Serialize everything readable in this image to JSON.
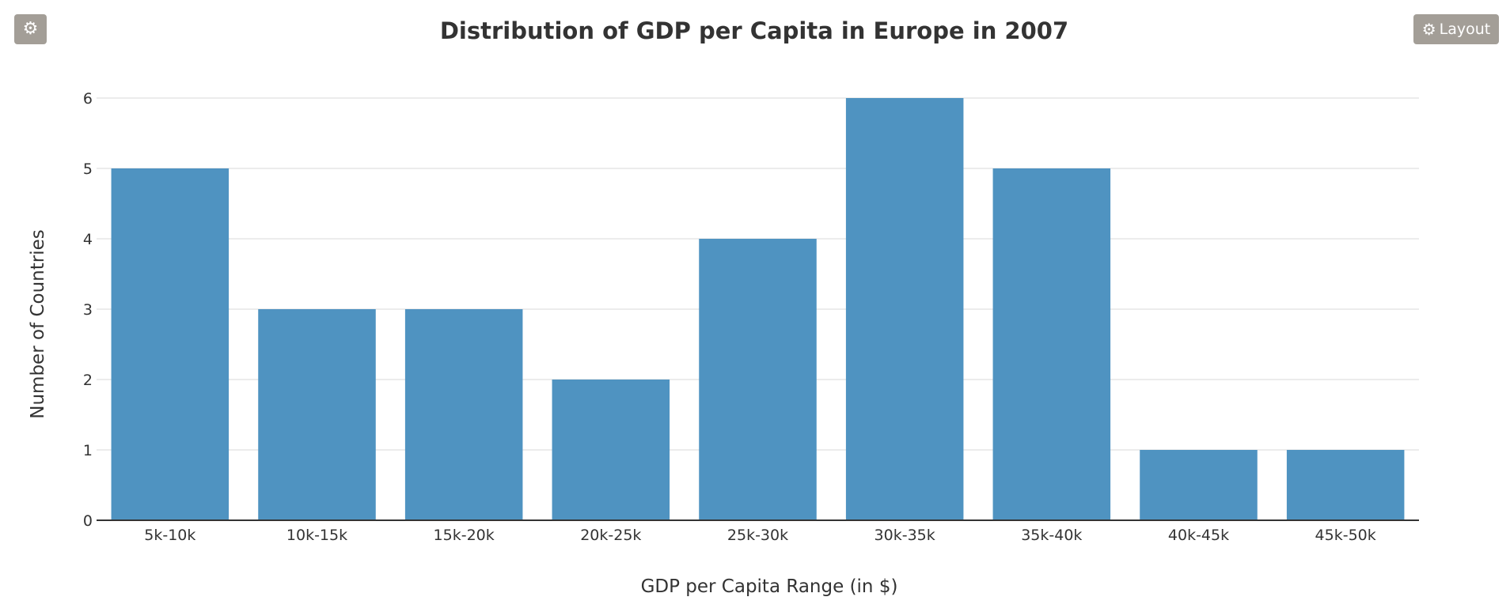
{
  "toolbar": {
    "settings_icon": "gear-icon",
    "layout_icon": "gear-icon",
    "layout_label": "Layout",
    "button_color": "#a39e97"
  },
  "chart_data": {
    "type": "bar",
    "title": "Distribution of GDP per Capita in Europe in 2007",
    "xlabel": "GDP per Capita Range (in $)",
    "ylabel": "Number of Countries",
    "categories": [
      "5k-10k",
      "10k-15k",
      "15k-20k",
      "20k-25k",
      "25k-30k",
      "30k-35k",
      "35k-40k",
      "40k-45k",
      "45k-50k"
    ],
    "values": [
      5,
      3,
      3,
      2,
      4,
      6,
      5,
      1,
      1
    ],
    "ylim": [
      0,
      6
    ],
    "yticks": [
      0,
      1,
      2,
      3,
      4,
      5,
      6
    ],
    "grid": true,
    "bar_color": "#4f93c1",
    "grid_color": "#e6e6e6",
    "axis_color": "#333333"
  }
}
